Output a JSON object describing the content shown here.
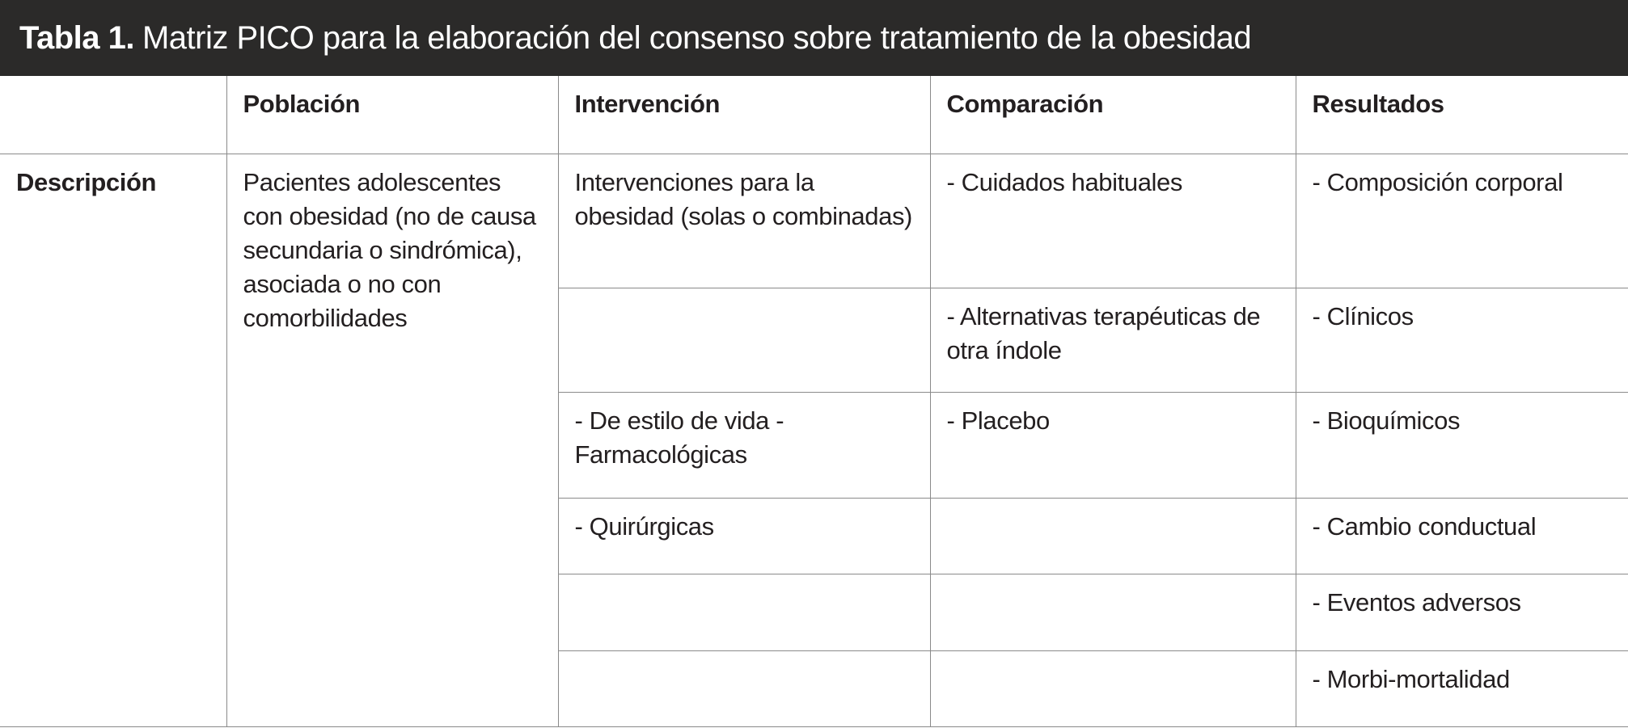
{
  "title": {
    "label": "Tabla 1.",
    "text": "Matriz PICO para la elaboración del consenso sobre tratamiento de la obesidad"
  },
  "table": {
    "headers": [
      "",
      "Población",
      "Intervención",
      "Comparación",
      "Resultados"
    ],
    "row_label": "Descripción",
    "poblacion": "Pacientes adolescentes con obesidad (no de causa secundaria o sindrómica), asociada o no con comorbilidades",
    "rows": [
      {
        "intervencion": "Intervenciones para la obesidad (solas o combinadas)",
        "comparacion": "- Cuidados habituales",
        "resultados": "- Composición corporal"
      },
      {
        "intervencion": "",
        "comparacion": "- Alternativas terapéuticas de otra índole",
        "resultados": "- Clínicos"
      },
      {
        "intervencion": "- De estilo de vida  - Farmacológicas",
        "comparacion": "- Placebo",
        "resultados": "- Bioquímicos"
      },
      {
        "intervencion": "- Quirúrgicas",
        "comparacion": "",
        "resultados": "- Cambio conductual"
      },
      {
        "intervencion": "",
        "comparacion": "",
        "resultados": "- Eventos adversos"
      },
      {
        "intervencion": "",
        "comparacion": "",
        "resultados": "- Morbi-mortalidad"
      }
    ]
  }
}
